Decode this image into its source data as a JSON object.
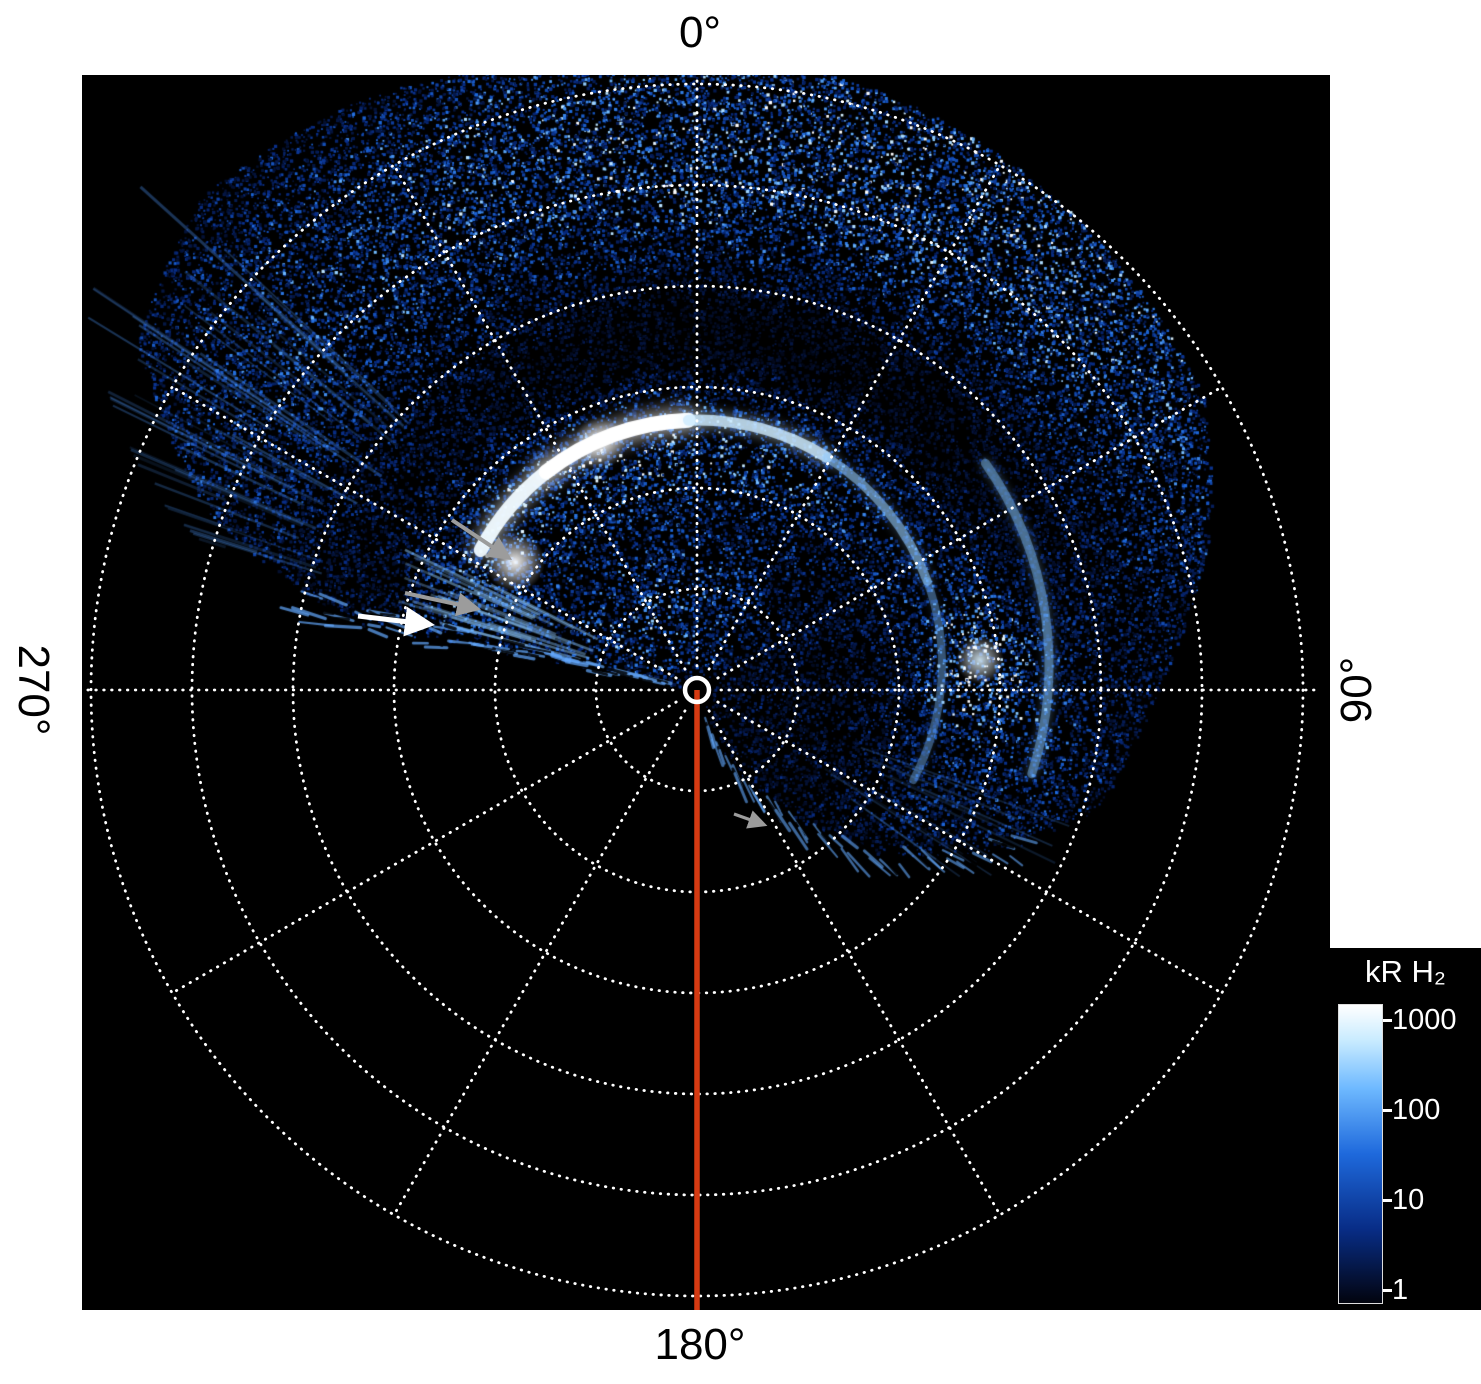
{
  "figure": {
    "background_color": "#ffffff",
    "plot_background_color": "#000000"
  },
  "axis_labels": {
    "top": "0°",
    "right": "90°",
    "bottom": "180°",
    "left": "270°"
  },
  "colorbar": {
    "title": "kR H₂",
    "ticks": [
      "1000",
      "100",
      "10",
      "1"
    ],
    "scale": "log"
  },
  "arrows": [
    {
      "id": "gray-arrow-upper",
      "color": "#9c9c9c"
    },
    {
      "id": "gray-arrow-mid",
      "color": "#9c9c9c"
    },
    {
      "id": "white-arrow",
      "color": "#ffffff"
    },
    {
      "id": "gray-arrow-lower",
      "color": "#9c9c9c"
    }
  ],
  "chart_data": {
    "type": "heatmap",
    "projection": "polar",
    "title": "",
    "angular_tick_labels": [
      "0°",
      "90°",
      "180°",
      "270°"
    ],
    "angular_direction": "clockwise",
    "zero_location": "top",
    "grid": {
      "rings": 6,
      "spoke_step_deg": 30,
      "style": "dotted",
      "color": "#ffffff"
    },
    "background": "#000000",
    "colorbar": {
      "label": "kR H₂",
      "unit": "kR",
      "scale": "log",
      "ticks": [
        1000,
        100,
        10,
        1
      ],
      "colors_top_to_bottom": [
        "#ffffff",
        "#c8ebff",
        "#6eb9ff",
        "#1e69dc",
        "#082d87",
        "#02040e"
      ]
    },
    "coverage_sector_deg": {
      "start": -80,
      "end": 150
    },
    "features": [
      {
        "name": "main-auroral-oval",
        "shape": "partial-ring",
        "angular_extent_deg": [
          -62,
          118
        ],
        "brightest_arc_deg": [
          -62,
          0
        ],
        "approx_intensity_kR": 1000
      },
      {
        "name": "diffuse-outer-emission",
        "angular_extent_deg": [
          -65,
          75
        ],
        "approx_intensity_kR": 100
      },
      {
        "name": "bright-spot-right",
        "angle_deg": 84,
        "approx_intensity_kR": 500
      },
      {
        "name": "radial-noise-streaks-upper-left",
        "angular_extent_deg": [
          -75,
          -47
        ]
      }
    ],
    "meridian_line": {
      "angle_deg": 180,
      "color": "#d63a12"
    }
  }
}
